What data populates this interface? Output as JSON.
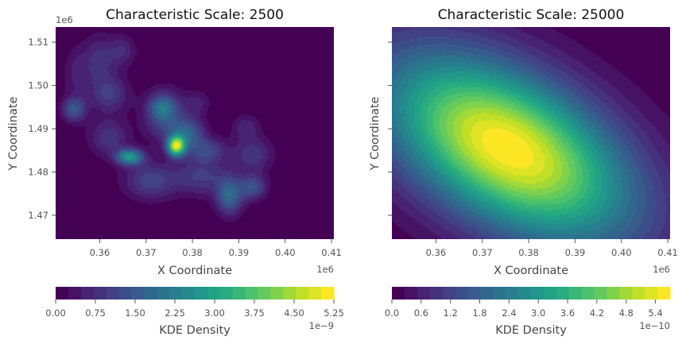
{
  "chart_data": [
    {
      "type": "heatmap",
      "title": "Characteristic Scale: 2500",
      "xlabel": "X Coordinate",
      "ylabel": "Y Coordinate",
      "x_offset": "1e6",
      "y_offset": "1e6",
      "xlim": [
        0.3505,
        0.4105
      ],
      "ylim": [
        1.4645,
        1.5135
      ],
      "xticks": [
        {
          "v": 0.36,
          "label": "0.36"
        },
        {
          "v": 0.37,
          "label": "0.37"
        },
        {
          "v": 0.38,
          "label": "0.38"
        },
        {
          "v": 0.39,
          "label": "0.39"
        },
        {
          "v": 0.4,
          "label": "0.40"
        },
        {
          "v": 0.41,
          "label": "0.41"
        }
      ],
      "yticks": [
        {
          "v": 1.47,
          "label": "1.47"
        },
        {
          "v": 1.48,
          "label": "1.48"
        },
        {
          "v": 1.49,
          "label": "1.49"
        },
        {
          "v": 1.5,
          "label": "1.50"
        },
        {
          "v": 1.51,
          "label": "1.51"
        }
      ],
      "show_ytick_labels": true,
      "colormap": "viridis",
      "levels": 22,
      "peaks": [
        {
          "x": 0.3765,
          "y": 1.486,
          "amp": 1.0,
          "sx": 0.0013,
          "sy": 0.0016
        },
        {
          "x": 0.3665,
          "y": 1.4835,
          "amp": 0.6,
          "sx": 0.002,
          "sy": 0.0013
        },
        {
          "x": 0.379,
          "y": 1.489,
          "amp": 0.35,
          "sx": 0.0025,
          "sy": 0.0025
        },
        {
          "x": 0.374,
          "y": 1.493,
          "amp": 0.28,
          "sx": 0.003,
          "sy": 0.004
        },
        {
          "x": 0.3735,
          "y": 1.495,
          "amp": 0.25,
          "sx": 0.002,
          "sy": 0.002
        },
        {
          "x": 0.388,
          "y": 1.4745,
          "amp": 0.4,
          "sx": 0.002,
          "sy": 0.003
        },
        {
          "x": 0.393,
          "y": 1.4765,
          "amp": 0.3,
          "sx": 0.002,
          "sy": 0.002
        },
        {
          "x": 0.3545,
          "y": 1.4945,
          "amp": 0.32,
          "sx": 0.0018,
          "sy": 0.002
        },
        {
          "x": 0.362,
          "y": 1.498,
          "amp": 0.22,
          "sx": 0.003,
          "sy": 0.003
        },
        {
          "x": 0.36,
          "y": 1.506,
          "amp": 0.18,
          "sx": 0.0025,
          "sy": 0.004
        },
        {
          "x": 0.365,
          "y": 1.508,
          "amp": 0.15,
          "sx": 0.002,
          "sy": 0.0025
        },
        {
          "x": 0.371,
          "y": 1.478,
          "amp": 0.25,
          "sx": 0.004,
          "sy": 0.003
        },
        {
          "x": 0.382,
          "y": 1.479,
          "amp": 0.22,
          "sx": 0.004,
          "sy": 0.003
        },
        {
          "x": 0.383,
          "y": 1.485,
          "amp": 0.25,
          "sx": 0.003,
          "sy": 0.002
        },
        {
          "x": 0.393,
          "y": 1.484,
          "amp": 0.2,
          "sx": 0.003,
          "sy": 0.003
        },
        {
          "x": 0.362,
          "y": 1.488,
          "amp": 0.2,
          "sx": 0.003,
          "sy": 0.003
        },
        {
          "x": 0.381,
          "y": 1.496,
          "amp": 0.12,
          "sx": 0.002,
          "sy": 0.002
        },
        {
          "x": 0.3915,
          "y": 1.4905,
          "amp": 0.14,
          "sx": 0.002,
          "sy": 0.002
        },
        {
          "x": 0.355,
          "y": 1.503,
          "amp": 0.12,
          "sx": 0.002,
          "sy": 0.004
        }
      ],
      "colorbar": {
        "label": "KDE Density",
        "offset": "1e−9",
        "max": 5.25,
        "ticks": [
          {
            "v": 0.0,
            "label": "0.00"
          },
          {
            "v": 0.75,
            "label": "0.75"
          },
          {
            "v": 1.5,
            "label": "1.50"
          },
          {
            "v": 2.25,
            "label": "2.25"
          },
          {
            "v": 3.0,
            "label": "3.00"
          },
          {
            "v": 3.75,
            "label": "3.75"
          },
          {
            "v": 4.5,
            "label": "4.50"
          },
          {
            "v": 5.25,
            "label": "5.25"
          }
        ]
      }
    },
    {
      "type": "heatmap",
      "title": "Characteristic Scale: 25000",
      "xlabel": "X Coordinate",
      "ylabel": "Y Coordinate",
      "x_offset": "1e6",
      "xlim": [
        0.3505,
        0.4105
      ],
      "ylim": [
        1.4645,
        1.5135
      ],
      "xticks": [
        {
          "v": 0.36,
          "label": "0.36"
        },
        {
          "v": 0.37,
          "label": "0.37"
        },
        {
          "v": 0.38,
          "label": "0.38"
        },
        {
          "v": 0.39,
          "label": "0.39"
        },
        {
          "v": 0.4,
          "label": "0.40"
        },
        {
          "v": 0.41,
          "label": "0.41"
        }
      ],
      "yticks": [
        {
          "v": 1.47,
          "label": ""
        },
        {
          "v": 1.48,
          "label": ""
        },
        {
          "v": 1.49,
          "label": ""
        },
        {
          "v": 1.5,
          "label": ""
        },
        {
          "v": 1.51,
          "label": ""
        }
      ],
      "show_ytick_labels": false,
      "colormap": "viridis",
      "levels": 22,
      "gaussian": {
        "cx": 0.3755,
        "cy": 1.4855,
        "sx": 0.0185,
        "sy": 0.015,
        "rho": -0.5
      },
      "colorbar": {
        "label": "KDE Density",
        "offset": "1e−10",
        "max": 5.7,
        "ticks": [
          {
            "v": 0.0,
            "label": "0.0"
          },
          {
            "v": 0.6,
            "label": "0.6"
          },
          {
            "v": 1.2,
            "label": "1.2"
          },
          {
            "v": 1.8,
            "label": "1.8"
          },
          {
            "v": 2.4,
            "label": "2.4"
          },
          {
            "v": 3.0,
            "label": "3.0"
          },
          {
            "v": 3.6,
            "label": "3.6"
          },
          {
            "v": 4.2,
            "label": "4.2"
          },
          {
            "v": 4.8,
            "label": "4.8"
          },
          {
            "v": 5.4,
            "label": "5.4"
          }
        ]
      }
    }
  ]
}
